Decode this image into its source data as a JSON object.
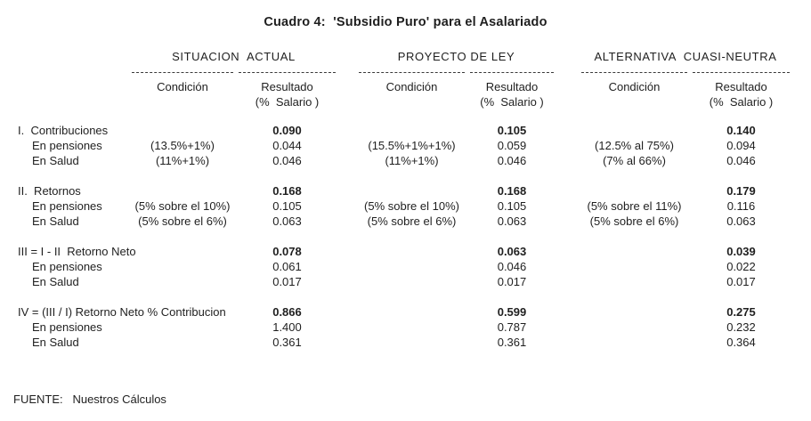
{
  "title": "Cuadro 4:  'Subsidio Puro' para el Asalariado",
  "groups": [
    {
      "name": "SITUACION  ACTUAL",
      "cond_header": "Condición",
      "res_header": "Resultado",
      "res_sub": "(%  Salario )"
    },
    {
      "name": "PROYECTO DE LEY",
      "cond_header": "Condición",
      "res_header": "Resultado",
      "res_sub": "(%  Salario )"
    },
    {
      "name": "ALTERNATIVA  CUASI-NEUTRA",
      "cond_header": "Condición",
      "res_header": "Resultado",
      "res_sub": "(%  Salario )"
    }
  ],
  "sections": [
    {
      "rows": [
        {
          "label": "I.  Contribuciones",
          "cells": [
            "",
            "0.090",
            "",
            "0.105",
            "",
            "0.140"
          ]
        },
        {
          "label": "En pensiones",
          "cells": [
            "(13.5%+1%)",
            "0.044",
            "(15.5%+1%+1%)",
            "0.059",
            "(12.5% al 75%)",
            "0.094"
          ]
        },
        {
          "label": "En Salud",
          "cells": [
            "(11%+1%)",
            "0.046",
            "(11%+1%)",
            "0.046",
            "(7% al 66%)",
            "0.046"
          ]
        }
      ]
    },
    {
      "rows": [
        {
          "label": "II.  Retornos",
          "cells": [
            "",
            "0.168",
            "",
            "0.168",
            "",
            "0.179"
          ]
        },
        {
          "label": "En pensiones",
          "cells": [
            "(5% sobre el 10%)",
            "0.105",
            "(5% sobre el 10%)",
            "0.105",
            "(5% sobre el 11%)",
            "0.116"
          ]
        },
        {
          "label": "En Salud",
          "cells": [
            "(5% sobre el 6%)",
            "0.063",
            "(5% sobre el 6%)",
            "0.063",
            "(5% sobre el 6%)",
            "0.063"
          ]
        }
      ]
    },
    {
      "rows": [
        {
          "label": "III = I - II  Retorno Neto",
          "cells": [
            "",
            "0.078",
            "",
            "0.063",
            "",
            "0.039"
          ]
        },
        {
          "label": "En pensiones",
          "cells": [
            "",
            "0.061",
            "",
            "0.046",
            "",
            "0.022"
          ]
        },
        {
          "label": "En Salud",
          "cells": [
            "",
            "0.017",
            "",
            "0.017",
            "",
            "0.017"
          ]
        }
      ]
    },
    {
      "rows": [
        {
          "label": "IV = (III / I) Retorno Neto % Contribucion",
          "cells": [
            "",
            "0.866",
            "",
            "0.599",
            "",
            "0.275"
          ]
        },
        {
          "label": "En pensiones",
          "cells": [
            "",
            "1.400",
            "",
            "0.787",
            "",
            "0.232"
          ]
        },
        {
          "label": "En Salud",
          "cells": [
            "",
            "0.361",
            "",
            "0.361",
            "",
            "0.364"
          ]
        }
      ]
    }
  ],
  "footer": "FUENTE:   Nuestros Cálculos"
}
